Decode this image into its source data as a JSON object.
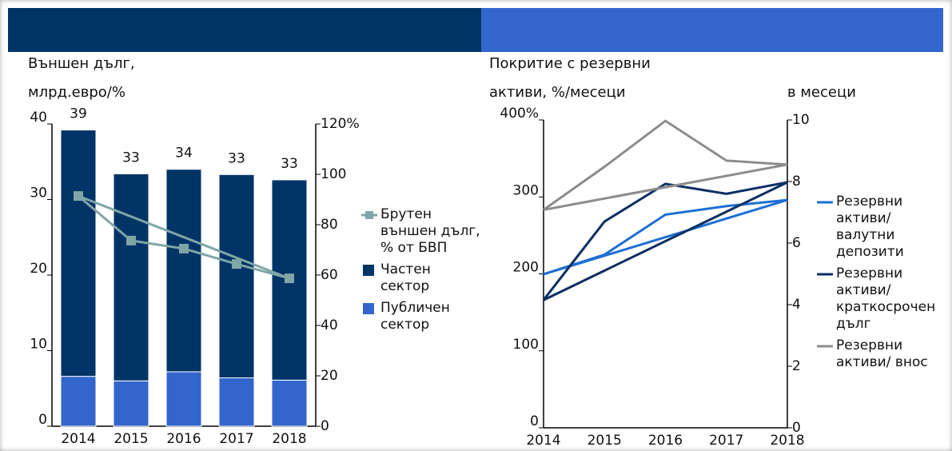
{
  "chart_data": [
    {
      "type": "bar",
      "title": "Външен дълг, млрд.евро/%",
      "stacked": true,
      "categories": [
        "2014",
        "2015",
        "2016",
        "2017",
        "2018"
      ],
      "series": [
        {
          "name": "Публичен сектор",
          "color": "#3366cc",
          "values": [
            6.6,
            6.0,
            7.2,
            6.4,
            6.1
          ]
        },
        {
          "name": "Частен сектор",
          "color": "#003466",
          "values": [
            32.6,
            27.4,
            26.8,
            26.9,
            26.5
          ]
        },
        {
          "name": "Брутен външен дълг, % от БВП",
          "type": "line",
          "axis": "y2",
          "color": "#7fa6a6",
          "values": [
            91.4,
            73.7,
            70.5,
            64.4,
            58.7
          ]
        }
      ],
      "total_labels": [
        39,
        33,
        34,
        33,
        33
      ],
      "ylim": [
        0,
        40
      ],
      "yticks": [
        0,
        10,
        20,
        30,
        40
      ],
      "y2lim": [
        0,
        120
      ],
      "y2ticks": [
        0,
        20,
        40,
        60,
        80,
        100,
        {
          "value": 120,
          "label": "120%"
        }
      ],
      "trendline": true
    },
    {
      "type": "line",
      "title": "Покритие с резервни активи, %/месеци",
      "y2_title": "в месеци",
      "categories": [
        "2014",
        "2015",
        "2016",
        "2017",
        "2018"
      ],
      "series": [
        {
          "name": "Резервни активи/ валутни депозити",
          "color": "#1c6fd3",
          "values": [
            199.5,
            225,
            277,
            288,
            296
          ]
        },
        {
          "name": "Резервни активи/ краткосрочен дълг",
          "color": "#0b2f63",
          "values": [
            166,
            268,
            317,
            304,
            319
          ]
        },
        {
          "name": "Резервни активи/ внос",
          "color": "#8c8c8c",
          "axis": "y2",
          "values": [
            7.08,
            8.48,
            9.97,
            8.68,
            8.55
          ]
        }
      ],
      "ylim": [
        0,
        400
      ],
      "yticks": [
        0,
        100,
        200,
        300,
        {
          "value": 400,
          "label": "400%"
        }
      ],
      "y2lim": [
        0,
        10
      ],
      "y2ticks": [
        0,
        2,
        4,
        6,
        8,
        10
      ],
      "trendline": true
    }
  ]
}
